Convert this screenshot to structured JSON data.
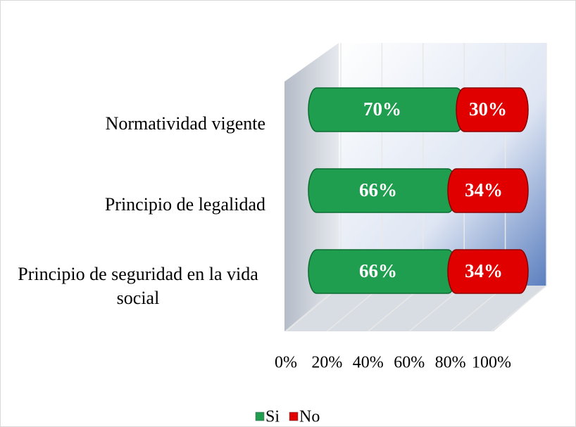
{
  "chart_data": {
    "type": "bar",
    "orientation": "horizontal",
    "stacked": true,
    "categories": [
      "Normatividad vigente",
      "Principio de legalidad",
      "Principio de seguridad en la vida social"
    ],
    "series": [
      {
        "name": "Si",
        "color": "#1e9e4e",
        "values": [
          70,
          66,
          66
        ],
        "value_labels": [
          "70%",
          "66%",
          "66%"
        ]
      },
      {
        "name": "No",
        "color": "#e00000",
        "values": [
          30,
          34,
          34
        ],
        "value_labels": [
          "30%",
          "34%",
          "34%"
        ]
      }
    ],
    "xlim": [
      0,
      100
    ],
    "xticks": [
      {
        "value": 0,
        "label": "0%"
      },
      {
        "value": 20,
        "label": "20%"
      },
      {
        "value": 40,
        "label": "40%"
      },
      {
        "value": 60,
        "label": "60%"
      },
      {
        "value": 80,
        "label": "80%"
      },
      {
        "value": 100,
        "label": "100%"
      }
    ],
    "grid": true,
    "legend": "bottom"
  }
}
